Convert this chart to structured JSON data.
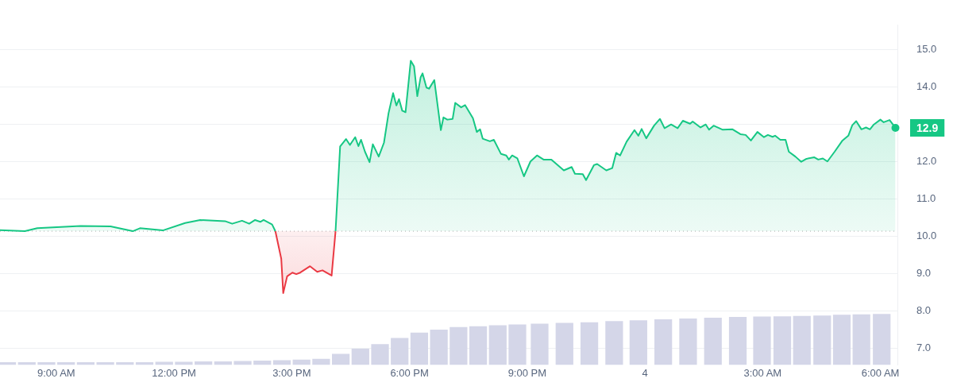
{
  "chart_data": {
    "type": "area",
    "xlim": [
      "--01-03T07:34",
      "--01-04T06:26"
    ],
    "ylim": [
      6.55,
      15.65
    ],
    "xticks": [
      {
        "value": "--01-03T09:00",
        "label": "9:00 AM"
      },
      {
        "value": "--01-03T12:00",
        "label": "12:00 PM"
      },
      {
        "value": "--01-03T15:00",
        "label": "3:00 PM"
      },
      {
        "value": "--01-03T18:00",
        "label": "6:00 PM"
      },
      {
        "value": "--01-03T21:00",
        "label": "9:00 PM"
      },
      {
        "value": "--01-04T00:00",
        "label": "4"
      },
      {
        "value": "--01-04T03:00",
        "label": "3:00 AM"
      },
      {
        "value": "--01-04T06:00",
        "label": "6:00 AM"
      }
    ],
    "yticks": [
      {
        "value": 7,
        "label": "7.0"
      },
      {
        "value": 8,
        "label": "8.0"
      },
      {
        "value": 9,
        "label": "9.0"
      },
      {
        "value": 10,
        "label": "10.0"
      },
      {
        "value": 11,
        "label": "11.0"
      },
      {
        "value": 12,
        "label": "12.0"
      },
      {
        "value": 13,
        "label": null
      },
      {
        "value": 14,
        "label": "14.0"
      },
      {
        "value": 15,
        "label": "15.0"
      }
    ],
    "grid": "y",
    "legend": false,
    "marker": "none",
    "line_style": "solid",
    "ref_lines": [
      {
        "axis": "y",
        "value": 10.13,
        "line_style": "dotted",
        "color": "#aaaaaa"
      }
    ],
    "annotations": [
      {
        "text": "12.9",
        "x": "--01-04T06:23",
        "y": 12.9
      }
    ],
    "series": [
      {
        "color": "#16c784",
        "x": [
          "--01-03T07:34",
          "--01-03T08:12",
          "--01-03T08:31",
          "--01-03T09:37",
          "--01-03T10:23",
          "--01-03T10:57",
          "--01-03T11:08",
          "--01-03T11:43",
          "--01-03T12:17",
          "--01-03T12:40",
          "--01-03T13:18",
          "--01-03T13:29",
          "--01-03T13:44",
          "--01-03T13:55",
          "--01-03T14:04",
          "--01-03T14:12",
          "--01-03T14:17",
          "--01-03T14:30",
          "--01-03T14:35",
          "--01-03T15:00",
          "--01-03T16:07",
          "--01-03T16:14",
          "--01-03T16:23",
          "--01-03T16:29",
          "--01-03T16:37",
          "--01-03T16:42",
          "--01-03T16:46",
          "--01-03T16:52",
          "--01-03T16:59",
          "--01-03T17:04",
          "--01-03T17:13",
          "--01-03T17:21",
          "--01-03T17:28",
          "--01-03T17:35",
          "--01-03T17:40",
          "--01-03T17:44",
          "--01-03T17:49",
          "--01-03T17:54",
          "--01-03T18:02",
          "--01-03T18:07",
          "--01-03T18:12",
          "--01-03T18:17",
          "--01-03T18:20",
          "--01-03T18:26",
          "--01-03T18:30",
          "--01-03T18:38",
          "--01-03T18:48",
          "--01-03T18:52",
          "--01-03T18:58",
          "--01-03T19:06",
          "--01-03T19:10",
          "--01-03T19:19",
          "--01-03T19:25",
          "--01-03T19:37",
          "--01-03T19:43",
          "--01-03T19:48",
          "--01-03T19:52",
          "--01-03T20:03",
          "--01-03T20:09",
          "--01-03T20:20",
          "--01-03T20:28",
          "--01-03T20:32",
          "--01-03T20:37",
          "--01-03T20:45",
          "--01-03T20:55",
          "--01-03T21:05",
          "--01-03T21:15",
          "--01-03T21:25",
          "--01-03T21:37",
          "--01-03T21:56",
          "--01-03T22:08",
          "--01-03T22:13",
          "--01-03T22:25",
          "--01-03T22:30",
          "--01-03T22:42",
          "--01-03T22:47",
          "--01-03T23:01",
          "--01-03T23:10",
          "--01-03T23:16",
          "--01-03T23:22",
          "--01-03T23:32",
          "--01-03T23:44",
          "--01-03T23:50",
          "--01-03T23:55",
          "--01-04T00:02",
          "--01-04T00:14",
          "--01-04T00:23",
          "--01-04T00:30",
          "--01-04T00:40",
          "--01-04T00:50",
          "--01-04T00:58",
          "--01-04T01:09",
          "--01-04T01:13",
          "--01-04T01:25",
          "--01-04T01:33",
          "--01-04T01:38",
          "--01-04T01:45",
          "--01-04T01:59",
          "--01-04T02:14",
          "--01-04T02:26",
          "--01-04T02:34",
          "--01-04T02:42",
          "--01-04T02:52",
          "--01-04T03:02",
          "--01-04T03:08",
          "--01-04T03:15",
          "--01-04T03:19",
          "--01-04T03:27",
          "--01-04T03:35",
          "--01-04T03:40",
          "--01-04T03:50",
          "--01-04T03:59",
          "--01-04T04:07",
          "--01-04T04:19",
          "--01-04T04:25",
          "--01-04T04:32",
          "--01-04T04:39",
          "--01-04T04:50",
          "--01-04T05:02",
          "--01-04T05:11",
          "--01-04T05:17",
          "--01-04T05:23",
          "--01-04T05:31",
          "--01-04T05:38",
          "--01-04T05:44",
          "--01-04T05:50",
          "--01-04T06:00",
          "--01-04T06:05",
          "--01-04T06:14",
          "--01-04T06:23"
        ],
        "values": [
          10.16,
          10.13,
          10.21,
          10.27,
          10.26,
          10.13,
          10.21,
          10.15,
          10.35,
          10.43,
          10.4,
          10.33,
          10.41,
          10.33,
          10.43,
          10.38,
          10.43,
          10.31,
          10.13,
          null,
          10.13,
          12.4,
          12.6,
          12.44,
          12.65,
          12.41,
          12.58,
          12.26,
          11.98,
          12.46,
          12.13,
          12.5,
          13.29,
          13.83,
          13.5,
          13.67,
          13.36,
          13.32,
          14.7,
          14.55,
          13.75,
          14.25,
          14.36,
          13.98,
          13.95,
          14.18,
          12.84,
          13.18,
          13.12,
          13.14,
          13.57,
          13.45,
          13.51,
          13.16,
          12.79,
          12.86,
          12.61,
          12.54,
          12.58,
          12.2,
          12.16,
          12.05,
          12.16,
          12.08,
          11.6,
          12.0,
          12.16,
          12.05,
          12.05,
          11.76,
          11.85,
          11.67,
          11.66,
          11.5,
          11.9,
          11.93,
          11.76,
          11.82,
          12.23,
          12.16,
          12.53,
          12.84,
          12.69,
          12.87,
          12.62,
          12.96,
          13.14,
          12.89,
          12.99,
          12.89,
          13.09,
          13.01,
          13.07,
          12.91,
          12.99,
          12.85,
          12.96,
          12.85,
          12.86,
          12.73,
          12.71,
          12.56,
          12.79,
          12.65,
          12.71,
          12.66,
          12.69,
          12.58,
          12.58,
          12.26,
          12.13,
          11.99,
          12.07,
          12.11,
          12.05,
          12.08,
          12.0,
          12.26,
          12.56,
          12.69,
          12.97,
          13.08,
          12.86,
          12.91,
          12.86,
          12.99,
          13.12,
          13.05,
          13.11,
          12.9
        ]
      },
      {
        "color": "#ea3943",
        "x": [
          "--01-03T14:35",
          "--01-03T14:44",
          "--01-03T14:47",
          "--01-03T14:53",
          "--01-03T15:01",
          "--01-03T15:07",
          "--01-03T15:13",
          "--01-03T15:28",
          "--01-03T15:39",
          "--01-03T15:47",
          "--01-03T16:01",
          "--01-03T16:07"
        ],
        "values": [
          10.13,
          9.39,
          8.47,
          8.92,
          9.02,
          8.98,
          9.02,
          9.19,
          9.04,
          9.08,
          8.94,
          10.13
        ]
      },
      {
        "type": "bar",
        "color": "#d4d6e8",
        "x": [
          "--01-03T07:45",
          "--01-03T08:15",
          "--01-03T08:45",
          "--01-03T09:15",
          "--01-03T09:45",
          "--01-03T10:15",
          "--01-03T10:45",
          "--01-03T11:15",
          "--01-03T11:45",
          "--01-03T12:15",
          "--01-03T12:45",
          "--01-03T13:15",
          "--01-03T13:45",
          "--01-03T14:15",
          "--01-03T14:45",
          "--01-03T15:15",
          "--01-03T15:45",
          "--01-03T16:15",
          "--01-03T16:45",
          "--01-03T17:15",
          "--01-03T17:45",
          "--01-03T18:15",
          "--01-03T18:45",
          "--01-03T19:15",
          "--01-03T19:45",
          "--01-03T20:15",
          "--01-03T20:45",
          "--01-03T21:19",
          "--01-03T21:57",
          "--01-03T22:35",
          "--01-03T23:13",
          "--01-03T23:50",
          "--01-04T00:28",
          "--01-04T01:06",
          "--01-04T01:44",
          "--01-04T02:22",
          "--01-04T02:59",
          "--01-04T03:30",
          "--01-04T04:00",
          "--01-04T04:31",
          "--01-04T05:01",
          "--01-04T05:31",
          "--01-04T06:02"
        ],
        "values": [
          6.62,
          6.62,
          6.62,
          6.62,
          6.62,
          6.62,
          6.62,
          6.62,
          6.63,
          6.63,
          6.64,
          6.64,
          6.65,
          6.66,
          6.67,
          6.69,
          6.71,
          6.84,
          6.98,
          7.1,
          7.27,
          7.41,
          7.49,
          7.56,
          7.58,
          7.61,
          7.63,
          7.65,
          7.67,
          7.69,
          7.72,
          7.74,
          7.77,
          7.79,
          7.81,
          7.83,
          7.84,
          7.85,
          7.86,
          7.87,
          7.89,
          7.9,
          7.91
        ]
      }
    ]
  }
}
